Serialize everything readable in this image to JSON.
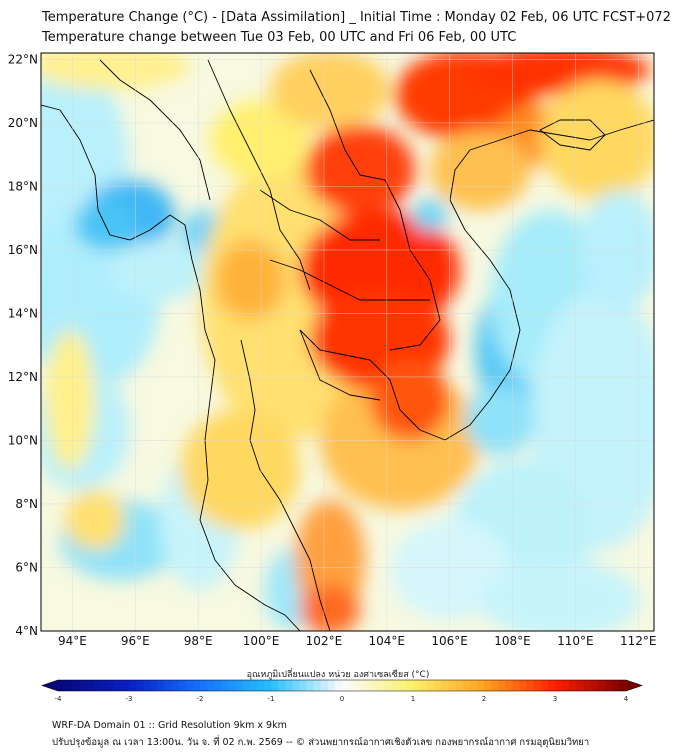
{
  "title_line1": "Temperature Change (°C) - [Data Assimilation] _ Initial Time : Monday 02 Feb, 06 UTC FCST+072",
  "title_line2": "Temperature change between Tue 03 Feb, 00 UTC and Fri 06 Feb, 00 UTC",
  "axes": {
    "lat_labels": [
      "22°N",
      "20°N",
      "18°N",
      "16°N",
      "14°N",
      "12°N",
      "10°N",
      "8°N",
      "6°N",
      "4°N"
    ],
    "lon_labels": [
      "94°E",
      "96°E",
      "98°E",
      "100°E",
      "102°E",
      "104°E",
      "106°E",
      "108°E",
      "110°E",
      "112°E"
    ],
    "lon_range": [
      93,
      112.5
    ],
    "lat_range": [
      4,
      22.2
    ],
    "grid": true
  },
  "colorbar": {
    "label": "อุณหภูมิเปลี่ยนแปลง หน่วย องศาเซลเซียส (°C)",
    "tick_labels": [
      "-4",
      "-3",
      "-2",
      "-1",
      "0",
      "1",
      "2",
      "3",
      "4"
    ],
    "min": -4,
    "max": 4,
    "colors": [
      "#08087a",
      "#0a1fc4",
      "#1670ff",
      "#25c0ff",
      "#fafcff",
      "#fbf06a",
      "#ffa21e",
      "#ff1f00",
      "#7a0000"
    ]
  },
  "footer_line1": "WRF-DA Domain 01 :: Grid Resolution 9km x 9km",
  "footer_line2": "ปรับปรุงข้อมูล ณ เวลา 13:00น. วัน จ. ที่ 02 ก.พ. 2569 -- © ส่วนพยากรณ์อากาศเชิงตัวเลข กองพยากรณ์อากาศ กรมอุตุนิยมวิทยา"
}
